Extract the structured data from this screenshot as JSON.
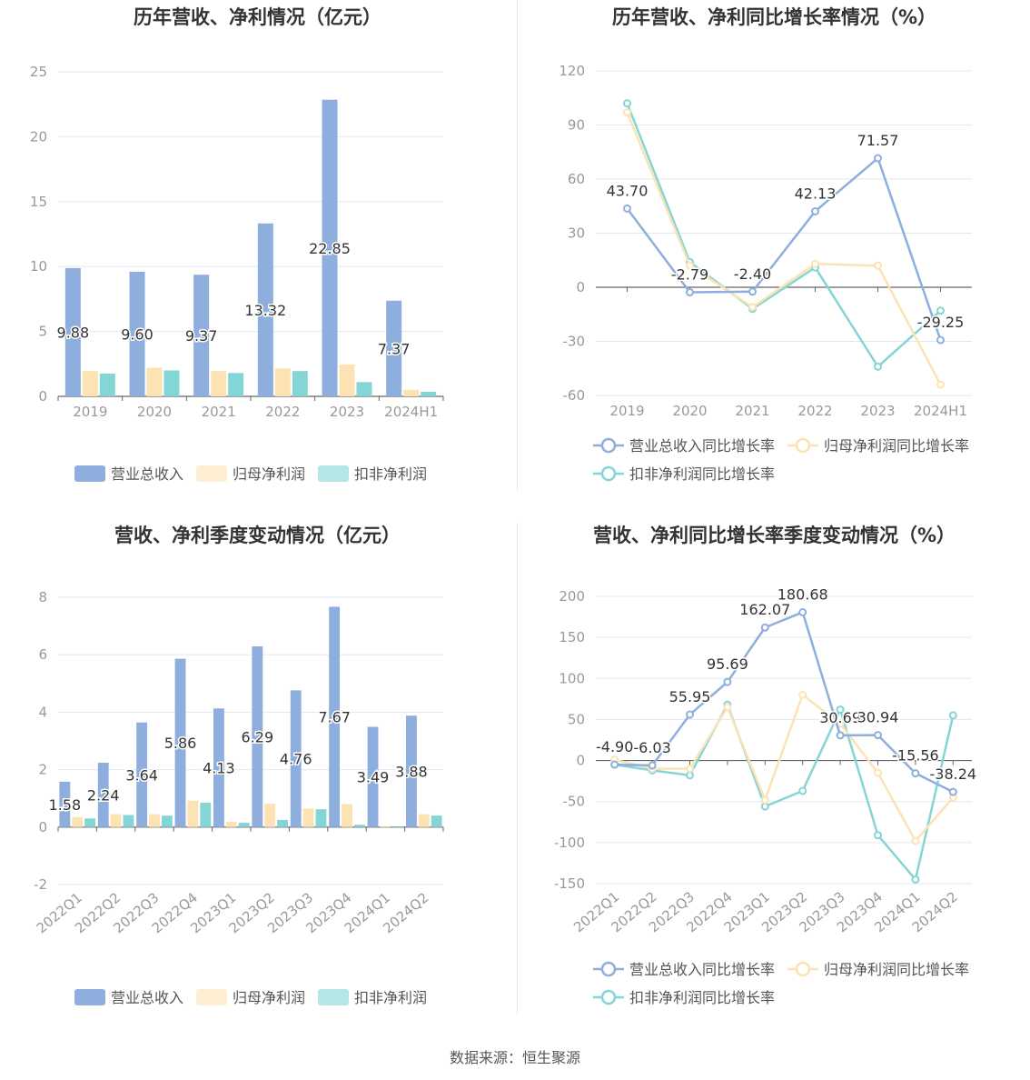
{
  "footer": {
    "source": "数据来源：恒生聚源"
  },
  "colors": {
    "revenue": "#8eaedd",
    "net_profit": "#fde2b3",
    "deducted_profit": "#84d5d5",
    "axis": "#999999",
    "grid": "#e4e7ef",
    "title": "#333333",
    "label": "#333333"
  },
  "chart_data": [
    {
      "id": "annual_amount",
      "type": "bar",
      "title": "历年营收、净利情况（亿元）",
      "categories": [
        "2019",
        "2020",
        "2021",
        "2022",
        "2023",
        "2024H1"
      ],
      "ylim": [
        0,
        25
      ],
      "yticks": [
        0,
        5,
        10,
        15,
        20,
        25
      ],
      "series": [
        {
          "name": "营业总收入",
          "values": [
            9.88,
            9.6,
            9.37,
            13.32,
            22.85,
            7.37
          ],
          "labels": [
            "9.88",
            "9.60",
            "9.37",
            "13.32",
            "22.85",
            "7.37"
          ]
        },
        {
          "name": "归母净利润",
          "values": [
            1.95,
            2.2,
            1.95,
            2.15,
            2.45,
            0.5
          ]
        },
        {
          "name": "扣非净利润",
          "values": [
            1.75,
            2.0,
            1.8,
            1.95,
            1.1,
            0.35
          ]
        }
      ],
      "legend": "bottom",
      "grid": true
    },
    {
      "id": "annual_growth",
      "type": "line",
      "title": "历年营收、净利同比增长率情况（%）",
      "categories": [
        "2019",
        "2020",
        "2021",
        "2022",
        "2023",
        "2024H1"
      ],
      "ylim": [
        -60,
        120
      ],
      "yticks": [
        -60,
        -30,
        0,
        30,
        60,
        90,
        120
      ],
      "series": [
        {
          "name": "营业总收入同比增长率",
          "values": [
            43.7,
            -2.79,
            -2.4,
            42.13,
            71.57,
            -29.25
          ],
          "labels": [
            "43.70",
            "-2.79",
            "-2.40",
            "42.13",
            "71.57",
            "-29.25"
          ]
        },
        {
          "name": "归母净利润同比增长率",
          "values": [
            97,
            12,
            -11,
            13,
            12,
            -54
          ]
        },
        {
          "name": "扣非净利润同比增长率",
          "values": [
            102,
            14,
            -12,
            11,
            -44,
            -13
          ]
        }
      ],
      "legend": "bottom",
      "grid": true
    },
    {
      "id": "quarterly_amount",
      "type": "bar",
      "title": "营收、净利季度变动情况（亿元）",
      "categories": [
        "2022Q1",
        "2022Q2",
        "2022Q3",
        "2022Q4",
        "2023Q1",
        "2023Q2",
        "2023Q3",
        "2023Q4",
        "2024Q1",
        "2024Q2"
      ],
      "ylim": [
        -2,
        8
      ],
      "yticks": [
        -2,
        0,
        2,
        4,
        6,
        8
      ],
      "series": [
        {
          "name": "营业总收入",
          "values": [
            1.58,
            2.24,
            3.64,
            5.86,
            4.13,
            6.29,
            4.76,
            7.67,
            3.49,
            3.88
          ],
          "labels": [
            "1.58",
            "2.24",
            "3.64",
            "5.86",
            "4.13",
            "6.29",
            "4.76",
            "7.67",
            "3.49",
            "3.88"
          ]
        },
        {
          "name": "归母净利润",
          "values": [
            0.35,
            0.45,
            0.45,
            0.92,
            0.18,
            0.82,
            0.65,
            0.8,
            0.03,
            0.45
          ]
        },
        {
          "name": "扣非净利润",
          "values": [
            0.3,
            0.42,
            0.4,
            0.85,
            0.15,
            0.25,
            0.62,
            0.08,
            0.02,
            0.4
          ]
        }
      ],
      "legend": "bottom",
      "grid": true
    },
    {
      "id": "quarterly_growth",
      "type": "line",
      "title": "营收、净利同比增长率季度变动情况（%）",
      "categories": [
        "2022Q1",
        "2022Q2",
        "2022Q3",
        "2022Q4",
        "2023Q1",
        "2023Q2",
        "2023Q3",
        "2023Q4",
        "2024Q1",
        "2024Q2"
      ],
      "ylim": [
        -150,
        200
      ],
      "yticks": [
        -150,
        -100,
        -50,
        0,
        50,
        100,
        150,
        200
      ],
      "series": [
        {
          "name": "营业总收入同比增长率",
          "values": [
            -4.9,
            -6.03,
            55.95,
            95.69,
            162.07,
            180.68,
            30.69,
            30.94,
            -15.56,
            -38.24
          ],
          "labels": [
            "-4.90",
            "-6.03",
            "55.95",
            "95.69",
            "162.07",
            "180.68",
            "30.69",
            "30.94",
            "-15.56",
            "-38.24"
          ]
        },
        {
          "name": "归母净利润同比增长率",
          "values": [
            1,
            -10,
            -10,
            65,
            -48,
            80,
            45,
            -15,
            -98,
            -45
          ]
        },
        {
          "name": "扣非净利润同比增长率",
          "values": [
            -5,
            -12,
            -18,
            68,
            -56,
            -37,
            62,
            -91,
            -145,
            55
          ]
        }
      ],
      "legend": "bottom",
      "grid": true
    }
  ]
}
